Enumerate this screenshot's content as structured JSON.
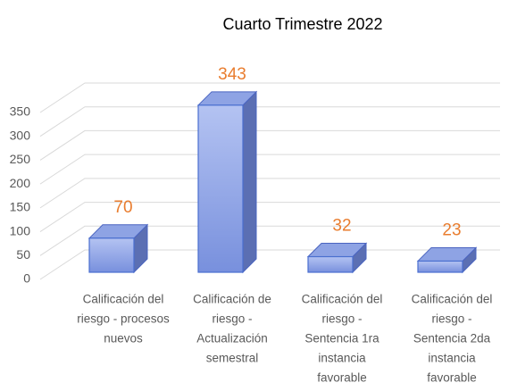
{
  "chart_data": {
    "type": "bar3d",
    "title": "Cuarto Trimestre 2022",
    "categories": [
      [
        "Calificación del",
        "riesgo - procesos",
        "nuevos"
      ],
      [
        "Calificación de",
        "riesgo -",
        "Actualización",
        "semestral"
      ],
      [
        "Calificación del",
        "riesgo -",
        "Sentencia 1ra",
        "instancia",
        "favorable"
      ],
      [
        "Calificación del",
        "riesgo -",
        "Sentencia 2da",
        "instancia",
        "favorable"
      ]
    ],
    "values": [
      70,
      343,
      32,
      23
    ],
    "color": "#7f96e0",
    "value_label_color": "#e97d2f",
    "ylim": [
      0,
      350
    ],
    "yticks": [
      0,
      50,
      100,
      150,
      200,
      250,
      300,
      350
    ],
    "grid": true
  }
}
